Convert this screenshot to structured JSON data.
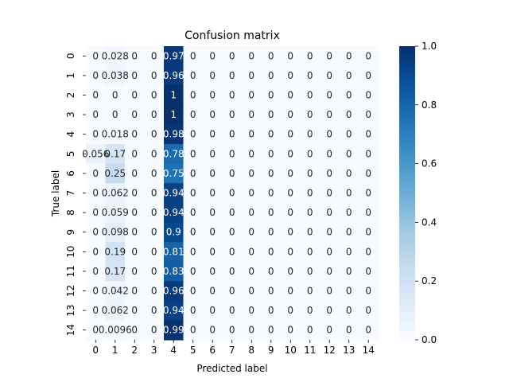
{
  "chart_data": {
    "type": "heatmap",
    "title": "Confusion matrix",
    "xlabel": "Predicted label",
    "ylabel": "True label",
    "x_tick_labels": [
      "0",
      "1",
      "2",
      "3",
      "4",
      "5",
      "6",
      "7",
      "8",
      "9",
      "10",
      "11",
      "12",
      "13",
      "14"
    ],
    "y_tick_labels": [
      "0",
      "1",
      "2",
      "3",
      "4",
      "5",
      "6",
      "7",
      "8",
      "9",
      "10",
      "11",
      "12",
      "13",
      "14"
    ],
    "colorbar": {
      "min": 0.0,
      "max": 1.0,
      "ticks": [
        "0.0",
        "0.2",
        "0.4",
        "0.6",
        "0.8",
        "1.0"
      ],
      "colormap": "Blues"
    },
    "values": [
      [
        0,
        0.028,
        0,
        0,
        0.97,
        0,
        0,
        0,
        0,
        0,
        0,
        0,
        0,
        0,
        0
      ],
      [
        0,
        0.038,
        0,
        0,
        0.96,
        0,
        0,
        0,
        0,
        0,
        0,
        0,
        0,
        0,
        0
      ],
      [
        0,
        0,
        0,
        0,
        1,
        0,
        0,
        0,
        0,
        0,
        0,
        0,
        0,
        0,
        0
      ],
      [
        0,
        0,
        0,
        0,
        1,
        0,
        0,
        0,
        0,
        0,
        0,
        0,
        0,
        0,
        0
      ],
      [
        0,
        0.018,
        0,
        0,
        0.98,
        0,
        0,
        0,
        0,
        0,
        0,
        0,
        0,
        0,
        0
      ],
      [
        0.056,
        0.17,
        0,
        0,
        0.78,
        0,
        0,
        0,
        0,
        0,
        0,
        0,
        0,
        0,
        0
      ],
      [
        0,
        0.25,
        0,
        0,
        0.75,
        0,
        0,
        0,
        0,
        0,
        0,
        0,
        0,
        0,
        0
      ],
      [
        0,
        0.062,
        0,
        0,
        0.94,
        0,
        0,
        0,
        0,
        0,
        0,
        0,
        0,
        0,
        0
      ],
      [
        0,
        0.059,
        0,
        0,
        0.94,
        0,
        0,
        0,
        0,
        0,
        0,
        0,
        0,
        0,
        0
      ],
      [
        0,
        0.098,
        0,
        0,
        0.9,
        0,
        0,
        0,
        0,
        0,
        0,
        0,
        0,
        0,
        0
      ],
      [
        0,
        0.19,
        0,
        0,
        0.81,
        0,
        0,
        0,
        0,
        0,
        0,
        0,
        0,
        0,
        0
      ],
      [
        0,
        0.17,
        0,
        0,
        0.83,
        0,
        0,
        0,
        0,
        0,
        0,
        0,
        0,
        0,
        0
      ],
      [
        0,
        0.042,
        0,
        0,
        0.96,
        0,
        0,
        0,
        0,
        0,
        0,
        0,
        0,
        0,
        0
      ],
      [
        0,
        0.062,
        0,
        0,
        0.94,
        0,
        0,
        0,
        0,
        0,
        0,
        0,
        0,
        0,
        0
      ],
      [
        0,
        0.0096,
        0,
        0,
        0.99,
        0,
        0,
        0,
        0,
        0,
        0,
        0,
        0,
        0,
        0
      ]
    ]
  }
}
